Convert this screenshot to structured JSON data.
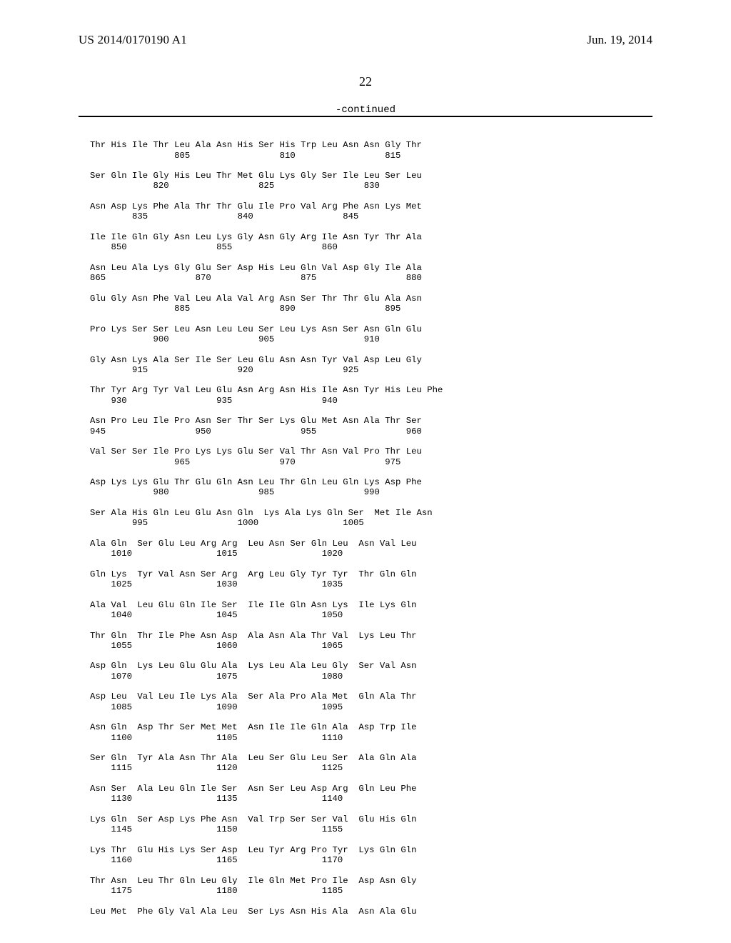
{
  "header": {
    "publication_id": "US 2014/0170190 A1",
    "publication_date": "Jun. 19, 2014",
    "page_number": "22",
    "continued_label": "-continued"
  },
  "sequence_text": "Thr His Ile Thr Leu Ala Asn His Ser His Trp Leu Asn Asn Gly Thr\n                805                 810                 815\n\nSer Gln Ile Gly His Leu Thr Met Glu Lys Gly Ser Ile Leu Ser Leu\n            820                 825                 830\n\nAsn Asp Lys Phe Ala Thr Thr Glu Ile Pro Val Arg Phe Asn Lys Met\n        835                 840                 845\n\nIle Ile Gln Gly Asn Leu Lys Gly Asn Gly Arg Ile Asn Tyr Thr Ala\n    850                 855                 860\n\nAsn Leu Ala Lys Gly Glu Ser Asp His Leu Gln Val Asp Gly Ile Ala\n865                 870                 875                 880\n\nGlu Gly Asn Phe Val Leu Ala Val Arg Asn Ser Thr Thr Glu Ala Asn\n                885                 890                 895\n\nPro Lys Ser Ser Leu Asn Leu Leu Ser Leu Lys Asn Ser Asn Gln Glu\n            900                 905                 910\n\nGly Asn Lys Ala Ser Ile Ser Leu Glu Asn Asn Tyr Val Asp Leu Gly\n        915                 920                 925\n\nThr Tyr Arg Tyr Val Leu Glu Asn Arg Asn His Ile Asn Tyr His Leu Phe\n    930                 935                 940\n\nAsn Pro Leu Ile Pro Asn Ser Thr Ser Lys Glu Met Asn Ala Thr Ser\n945                 950                 955                 960\n\nVal Ser Ser Ile Pro Lys Lys Glu Ser Val Thr Asn Val Pro Thr Leu\n                965                 970                 975\n\nAsp Lys Lys Glu Thr Glu Gln Asn Leu Thr Gln Leu Gln Lys Asp Phe\n            980                 985                 990\n\nSer Ala His Gln Leu Glu Asn Gln  Lys Ala Lys Gln Ser  Met Ile Asn\n        995                 1000                1005\n\nAla Gln  Ser Glu Leu Arg Arg  Leu Asn Ser Gln Leu  Asn Val Leu\n    1010                1015                1020\n\nGln Lys  Tyr Val Asn Ser Arg  Arg Leu Gly Tyr Tyr  Thr Gln Gln\n    1025                1030                1035\n\nAla Val  Leu Glu Gln Ile Ser  Ile Ile Gln Asn Lys  Ile Lys Gln\n    1040                1045                1050\n\nThr Gln  Thr Ile Phe Asn Asp  Ala Asn Ala Thr Val  Lys Leu Thr\n    1055                1060                1065\n\nAsp Gln  Lys Leu Glu Glu Ala  Lys Leu Ala Leu Gly  Ser Val Asn\n    1070                1075                1080\n\nAsp Leu  Val Leu Ile Lys Ala  Ser Ala Pro Ala Met  Gln Ala Thr\n    1085                1090                1095\n\nAsn Gln  Asp Thr Ser Met Met  Asn Ile Ile Gln Ala  Asp Trp Ile\n    1100                1105                1110\n\nSer Gln  Tyr Ala Asn Thr Ala  Leu Ser Glu Leu Ser  Ala Gln Ala\n    1115                1120                1125\n\nAsn Ser  Ala Leu Gln Ile Ser  Asn Ser Leu Asp Arg  Gln Leu Phe\n    1130                1135                1140\n\nLys Gln  Ser Asp Lys Phe Asn  Val Trp Ser Ser Val  Glu His Gln\n    1145                1150                1155\n\nLys Thr  Glu His Lys Ser Asp  Leu Tyr Arg Pro Tyr  Lys Gln Gln\n    1160                1165                1170\n\nThr Asn  Leu Thr Gln Leu Gly  Ile Gln Met Pro Ile  Asp Asn Gly\n    1175                1180                1185\n\nLeu Met  Phe Gly Val Ala Leu  Ser Lys Asn His Ala  Asn Ala Glu"
}
